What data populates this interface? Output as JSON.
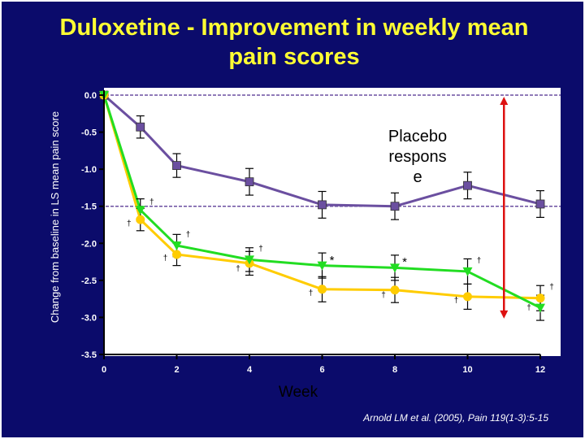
{
  "slide": {
    "title": "Duloxetine - Improvement in weekly mean pain scores",
    "citation": "Arnold LM et al. (2005), Pain 119(1-3):5-15"
  },
  "colors": {
    "background": "#0b0b6b",
    "title": "#ffff33",
    "plot_area": "#ffffff",
    "placebo": "#6b4fa0",
    "series_green": "#22dd22",
    "series_yellow": "#ffcc00",
    "arrow": "#dd1111"
  },
  "chart_data": {
    "type": "line",
    "title": "",
    "xlabel": "Week",
    "ylabel": "Change from baseline in LS mean pain score",
    "xlim": [
      0,
      12
    ],
    "ylim": [
      -3.5,
      0
    ],
    "xticks": [
      0,
      2,
      4,
      6,
      8,
      10,
      12
    ],
    "yticks": [
      0.0,
      -0.5,
      -1.0,
      -1.5,
      -2.0,
      -2.5,
      -3.0,
      -3.5
    ],
    "ytick_labels": [
      "0.0",
      "-0.5",
      "-1.0",
      "-1.5",
      "-2.0",
      "-2.5",
      "-3.0",
      "-3.5"
    ],
    "grid": false,
    "reference_lines": [
      0.0,
      -1.5
    ],
    "series": [
      {
        "marker": "square",
        "color": "#6b4fa0",
        "x": [
          0,
          1,
          2,
          4,
          6,
          8,
          10,
          12
        ],
        "y": [
          0.0,
          -0.43,
          -0.95,
          -1.17,
          -1.48,
          -1.5,
          -1.22,
          -1.47
        ],
        "err": [
          0,
          0.15,
          0.16,
          0.18,
          0.18,
          0.18,
          0.18,
          0.18
        ]
      },
      {
        "marker": "triangle-down",
        "color": "#22dd22",
        "x": [
          0,
          1,
          2,
          4,
          6,
          8,
          10,
          12
        ],
        "y": [
          0.0,
          -1.55,
          -2.03,
          -2.22,
          -2.3,
          -2.33,
          -2.38,
          -2.87
        ],
        "err": [
          0,
          0.15,
          0.15,
          0.16,
          0.17,
          0.17,
          0.17,
          0.17
        ]
      },
      {
        "marker": "circle",
        "color": "#ffcc00",
        "x": [
          0,
          1,
          2,
          4,
          6,
          8,
          10,
          12
        ],
        "y": [
          0.0,
          -1.68,
          -2.15,
          -2.27,
          -2.62,
          -2.63,
          -2.72,
          -2.74
        ],
        "err": [
          0,
          0.15,
          0.15,
          0.16,
          0.17,
          0.17,
          0.17,
          0.17
        ]
      }
    ],
    "significance_marks": [
      {
        "x": 1,
        "y": -1.43,
        "dx": 14,
        "label": "†"
      },
      {
        "x": 1,
        "y": -1.72,
        "dx": -14,
        "label": "†"
      },
      {
        "x": 2,
        "y": -1.87,
        "dx": 14,
        "label": "†"
      },
      {
        "x": 2,
        "y": -2.19,
        "dx": -14,
        "label": "†"
      },
      {
        "x": 4,
        "y": -2.06,
        "dx": 14,
        "label": "†"
      },
      {
        "x": 4,
        "y": -2.33,
        "dx": -14,
        "label": "†"
      },
      {
        "x": 6,
        "y": -2.24,
        "dx": 12,
        "label": "*"
      },
      {
        "x": 6,
        "y": -2.66,
        "dx": -14,
        "label": "†"
      },
      {
        "x": 8,
        "y": -2.26,
        "dx": 12,
        "label": "*"
      },
      {
        "x": 8,
        "y": -2.69,
        "dx": -14,
        "label": "†"
      },
      {
        "x": 10,
        "y": -2.22,
        "dx": 14,
        "label": "†"
      },
      {
        "x": 10,
        "y": -2.76,
        "dx": -14,
        "label": "†"
      },
      {
        "x": 12,
        "y": -2.58,
        "dx": 14,
        "label": "†"
      },
      {
        "x": 12,
        "y": -2.86,
        "dx": -14,
        "label": "†"
      }
    ],
    "annotation": {
      "lines": [
        "Placebo",
        "respons",
        "e"
      ],
      "arrow_x": 11.0,
      "arrow_y": [
        0.0,
        -2.95
      ]
    }
  }
}
